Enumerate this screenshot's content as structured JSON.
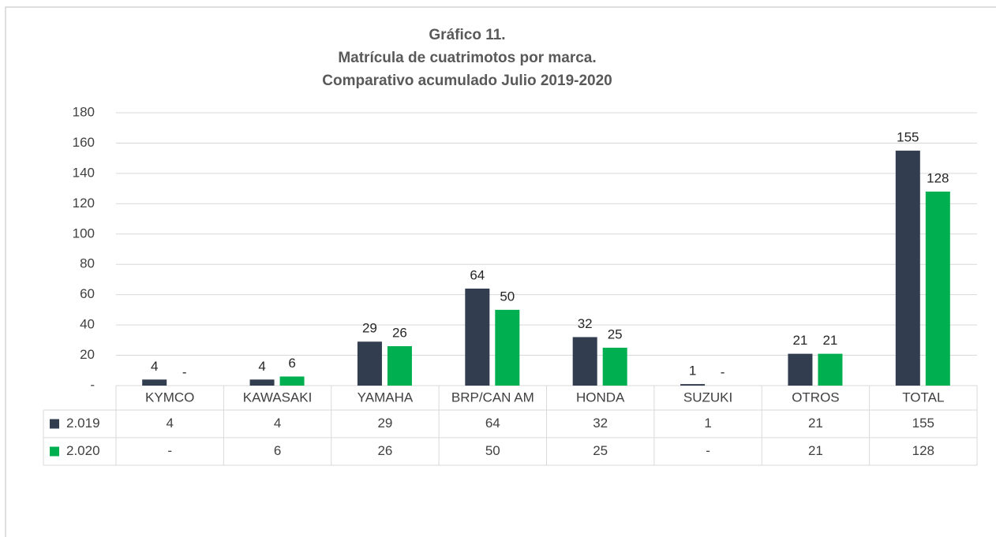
{
  "chart_data": {
    "type": "bar",
    "title": "Gráfico 11.",
    "subtitle": [
      "Matrícula de cuatrimotos por marca.",
      "Comparativo acumulado Julio 2019-2020"
    ],
    "categories": [
      "KYMCO",
      "KAWASAKI",
      "YAMAHA",
      "BRP/CAN AM",
      "HONDA",
      "SUZUKI",
      "OTROS",
      "TOTAL"
    ],
    "series": [
      {
        "name": "2.019",
        "color": "#323e4f",
        "values": [
          4,
          4,
          29,
          64,
          32,
          1,
          21,
          155
        ]
      },
      {
        "name": "2.020",
        "color": "#00b050",
        "values": [
          0,
          6,
          26,
          50,
          25,
          0,
          21,
          128
        ],
        "value_labels": [
          "-",
          "6",
          "26",
          "50",
          "25",
          "-",
          "21",
          "128"
        ]
      }
    ],
    "ylim": [
      0,
      180
    ],
    "yticks": [
      {
        "value": 0,
        "label": "-"
      },
      20,
      40,
      60,
      80,
      100,
      120,
      140,
      160,
      180
    ],
    "grid": true,
    "legend": "table"
  }
}
